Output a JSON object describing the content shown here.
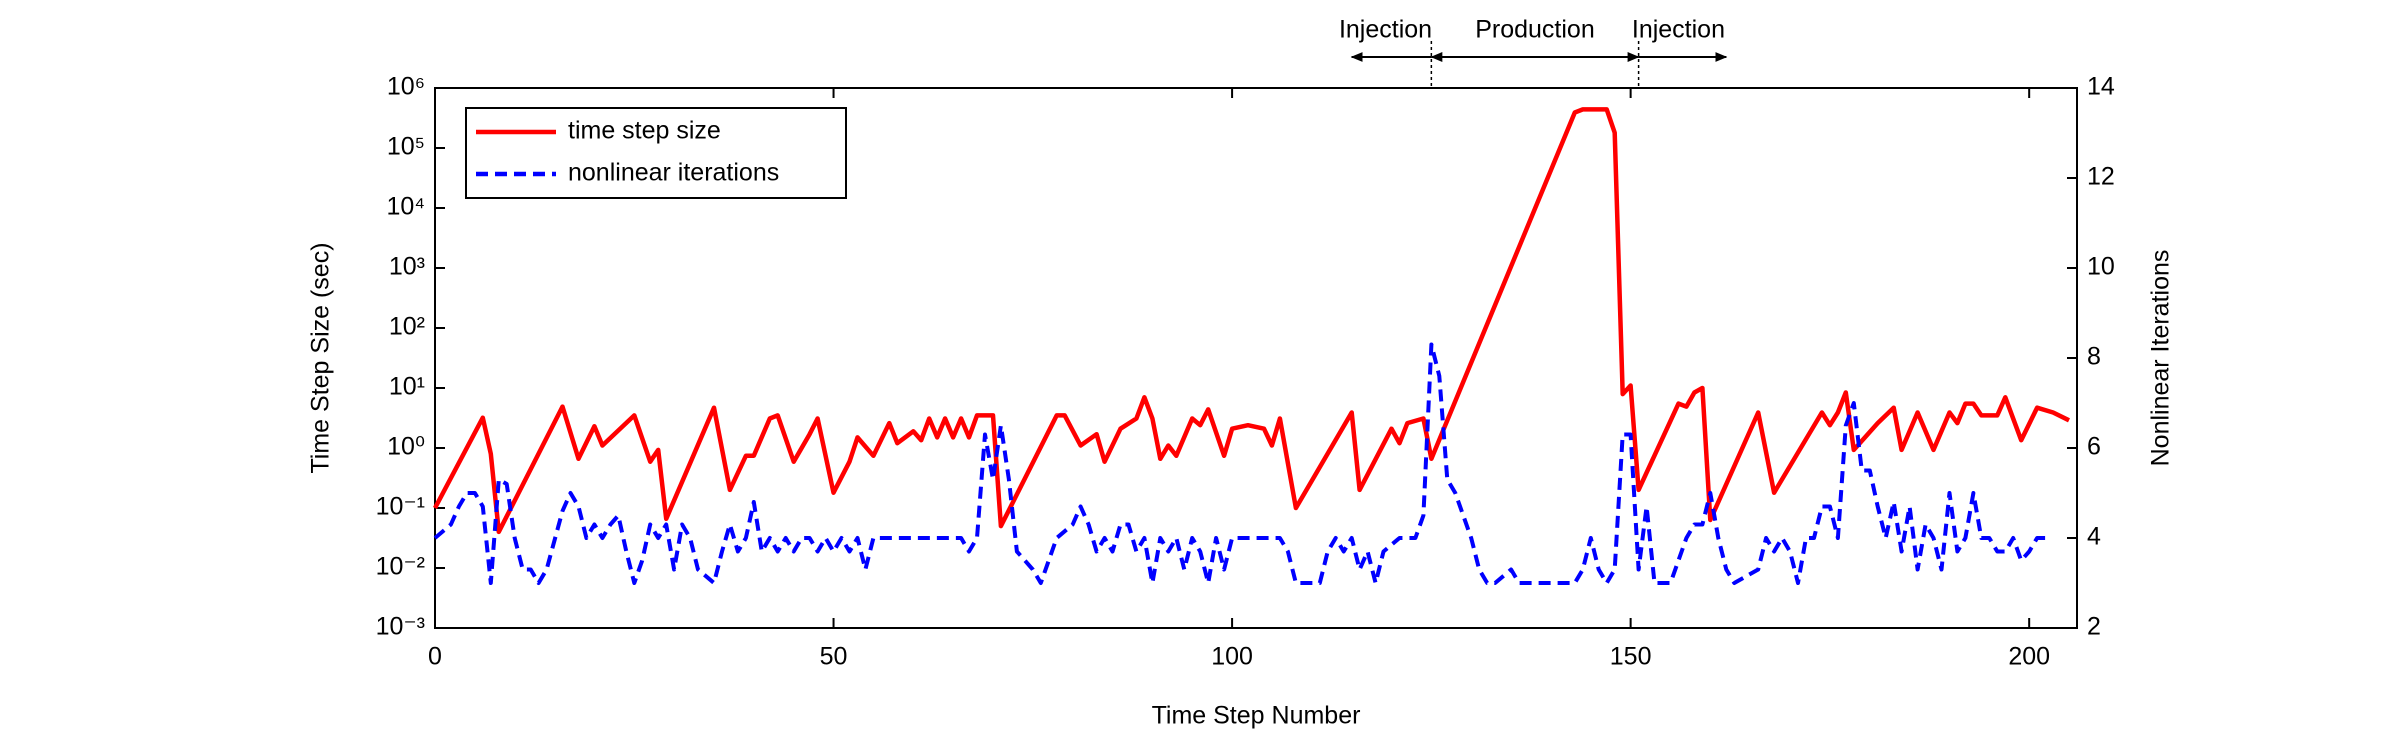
{
  "chart_data": {
    "type": "line",
    "xlabel": "Time Step Number",
    "ylabel": "Time Step Size (sec)",
    "y2label": "Nonlinear Iterations",
    "xlim": [
      0,
      206
    ],
    "xticks": [
      0,
      50,
      100,
      150,
      200
    ],
    "ylog": true,
    "ylim": [
      0.001,
      1000000
    ],
    "yticks": [
      {
        "value": 0.001,
        "label": "10⁻³"
      },
      {
        "value": 0.01,
        "label": "10⁻²"
      },
      {
        "value": 0.1,
        "label": "10⁻¹"
      },
      {
        "value": 1,
        "label": "10⁰"
      },
      {
        "value": 10,
        "label": "10¹"
      },
      {
        "value": 100,
        "label": "10²"
      },
      {
        "value": 1000,
        "label": "10³"
      },
      {
        "value": 10000,
        "label": "10⁴"
      },
      {
        "value": 100000,
        "label": "10⁵"
      },
      {
        "value": 1000000,
        "label": "10⁶"
      }
    ],
    "y2lim": [
      2,
      14
    ],
    "y2ticks": [
      2,
      4,
      6,
      8,
      10,
      12,
      14
    ],
    "legend": "upper left",
    "annotations": [
      {
        "text": "Injection",
        "x": [
          115,
          125
        ],
        "heads": "start"
      },
      {
        "text": "Production",
        "x": [
          125,
          151
        ],
        "heads": "both"
      },
      {
        "text": "Injection",
        "x": [
          151,
          162
        ],
        "heads": "end"
      }
    ],
    "series": [
      {
        "name": "time step size",
        "color": "#ff0000",
        "dash": "solid",
        "x": [
          0,
          6,
          7,
          8,
          16,
          18,
          20,
          21,
          25,
          27,
          28,
          29,
          35,
          37,
          39,
          40,
          42,
          43,
          45,
          47,
          48,
          50,
          52,
          53,
          55,
          57,
          58,
          60,
          61,
          62,
          63,
          64,
          65,
          66,
          67,
          68,
          70,
          71,
          78,
          79,
          81,
          83,
          84,
          86,
          88,
          89,
          90,
          91,
          92,
          93,
          95,
          96,
          97,
          99,
          100,
          102,
          104,
          105,
          106,
          108,
          115,
          116,
          120,
          121,
          122,
          124,
          125,
          143,
          144,
          147,
          148,
          149,
          150,
          151,
          156,
          157,
          158,
          159,
          160,
          166,
          168,
          174,
          175,
          176,
          177,
          178,
          181,
          183,
          184,
          186,
          188,
          190,
          191,
          192,
          193,
          194,
          196,
          197,
          199,
          201,
          203,
          205
        ],
        "values": [
          0.1,
          3.2,
          0.8,
          0.04,
          4.9,
          0.66,
          2.3,
          1.1,
          3.5,
          0.59,
          0.93,
          0.066,
          4.7,
          0.2,
          0.74,
          0.74,
          3.1,
          3.5,
          0.59,
          1.7,
          3.1,
          0.18,
          0.59,
          1.5,
          0.74,
          2.6,
          1.2,
          1.9,
          1.35,
          3.1,
          1.5,
          3.1,
          1.5,
          3.1,
          1.5,
          3.5,
          3.5,
          0.05,
          3.5,
          3.5,
          1.1,
          1.7,
          0.59,
          2.1,
          3.1,
          7,
          3.1,
          0.66,
          1.1,
          0.74,
          3.1,
          2.4,
          4.4,
          0.74,
          2.1,
          2.4,
          2.1,
          1.1,
          3.1,
          0.1,
          3.9,
          0.2,
          2.1,
          1.2,
          2.6,
          3.1,
          0.66,
          390000,
          440000,
          440000,
          180000,
          7.9,
          11,
          0.2,
          5.5,
          4.9,
          8.4,
          10,
          0.063,
          3.9,
          0.18,
          3.9,
          2.4,
          3.9,
          8.4,
          0.93,
          2.6,
          4.7,
          0.93,
          3.9,
          0.93,
          3.9,
          2.6,
          5.5,
          5.5,
          3.5,
          3.5,
          7,
          1.35,
          4.7,
          3.9,
          2.9
        ]
      },
      {
        "name": "nonlinear iterations",
        "color": "#0000ff",
        "dash": "dashed",
        "axis": "y2",
        "x": [
          0,
          2,
          3,
          4,
          5,
          6,
          7,
          8,
          9,
          10,
          11,
          12,
          13,
          14,
          16,
          17,
          18,
          19,
          20,
          21,
          22,
          23,
          24,
          25,
          26,
          27,
          28,
          29,
          30,
          31,
          32,
          33,
          35,
          36,
          37,
          38,
          39,
          40,
          41,
          42,
          43,
          44,
          45,
          46,
          47,
          48,
          49,
          50,
          51,
          52,
          53,
          54,
          55,
          66,
          67,
          68,
          69,
          70,
          71,
          72,
          73,
          75,
          76,
          78,
          80,
          81,
          82,
          83,
          84,
          85,
          86,
          87,
          88,
          89,
          90,
          91,
          92,
          93,
          94,
          95,
          96,
          97,
          98,
          99,
          100,
          106,
          107,
          108,
          110,
          111,
          112,
          113,
          114,
          115,
          116,
          117,
          118,
          119,
          121,
          123,
          124,
          125,
          126,
          127,
          128,
          130,
          131,
          132,
          133,
          135,
          136,
          143,
          144,
          145,
          146,
          147,
          148,
          149,
          150,
          151,
          152,
          153,
          155,
          157,
          158,
          159,
          160,
          161,
          162,
          163,
          166,
          167,
          168,
          169,
          170,
          171,
          172,
          173,
          174,
          175,
          176,
          177,
          178,
          179,
          180,
          181,
          182,
          183,
          184,
          185,
          186,
          187,
          188,
          189,
          190,
          191,
          192,
          193,
          194,
          195,
          196,
          197,
          198,
          199,
          200,
          201,
          202
        ],
        "values": [
          4,
          4.3,
          4.7,
          5,
          5,
          4.7,
          3,
          5.3,
          5.2,
          4,
          3.3,
          3.3,
          3,
          3.3,
          4.6,
          5,
          4.7,
          4,
          4.3,
          4,
          4.3,
          4.5,
          3.7,
          3,
          3.5,
          4.3,
          4,
          4.3,
          3.3,
          4.3,
          4,
          3.3,
          3,
          3.7,
          4.3,
          3.7,
          4,
          4.8,
          3.7,
          4,
          3.7,
          4,
          3.7,
          4,
          4,
          3.7,
          4,
          3.7,
          4,
          3.7,
          4,
          3.3,
          4,
          4,
          3.7,
          4,
          6.3,
          5.3,
          6.5,
          5.3,
          3.7,
          3.3,
          3,
          4,
          4.3,
          4.7,
          4.3,
          3.7,
          4,
          3.7,
          4.3,
          4.3,
          3.7,
          4,
          3,
          4,
          3.7,
          4,
          3.3,
          4,
          3.7,
          3,
          4,
          3.3,
          4,
          4,
          3.7,
          3,
          3,
          3,
          3.7,
          4,
          3.7,
          4,
          3.3,
          3.7,
          3,
          3.7,
          4,
          4,
          4.5,
          8.3,
          7.6,
          5.3,
          5,
          4,
          3.3,
          3,
          3,
          3.3,
          3,
          3,
          3.3,
          4,
          3.3,
          3,
          3.3,
          6.3,
          6.3,
          3.3,
          4.7,
          3,
          3,
          4,
          4.3,
          4.3,
          5,
          4,
          3.3,
          3,
          3.3,
          4,
          3.7,
          4,
          3.7,
          3,
          4,
          4,
          4.7,
          4.7,
          4,
          6.5,
          7,
          5.5,
          5.5,
          4.7,
          4,
          4.8,
          3.7,
          4.7,
          3.3,
          4.3,
          4,
          3.3,
          5,
          3.7,
          4,
          5,
          4,
          4,
          3.7,
          3.7,
          4,
          3.5,
          3.7,
          4,
          4
        ]
      }
    ]
  }
}
